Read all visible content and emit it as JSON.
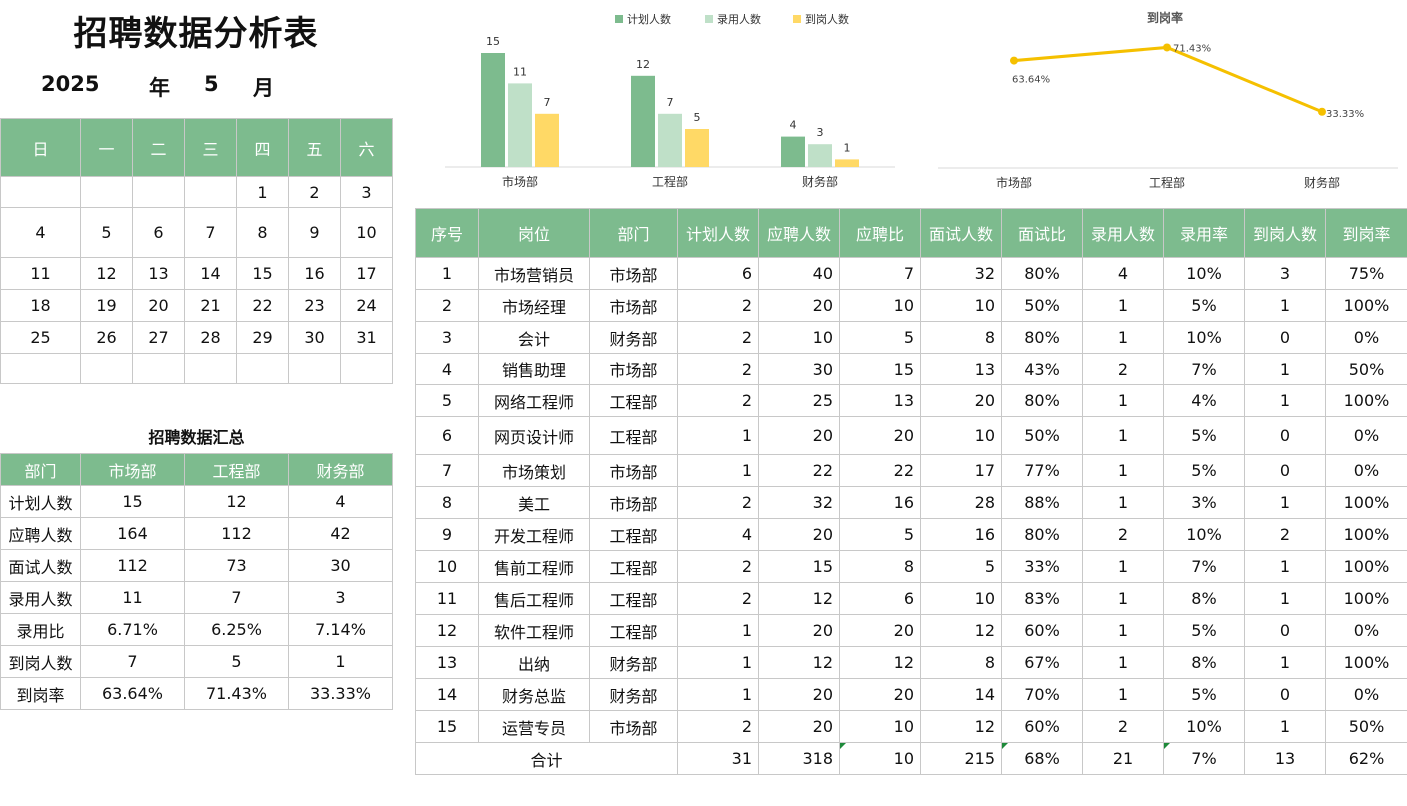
{
  "title": "招聘数据分析表",
  "calendar": {
    "year": "2025",
    "year_label": "年",
    "month": "5",
    "month_label": "月",
    "weekdays": [
      "日",
      "一",
      "二",
      "三",
      "四",
      "五",
      "六"
    ],
    "weeks": [
      [
        "",
        "",
        "",
        "",
        "1",
        "2",
        "3"
      ],
      [
        "4",
        "5",
        "6",
        "7",
        "8",
        "9",
        "10"
      ],
      [
        "11",
        "12",
        "13",
        "14",
        "15",
        "16",
        "17"
      ],
      [
        "18",
        "19",
        "20",
        "21",
        "22",
        "23",
        "24"
      ],
      [
        "25",
        "26",
        "27",
        "28",
        "29",
        "30",
        "31"
      ],
      [
        "",
        "",
        "",
        "",
        "",
        "",
        ""
      ]
    ]
  },
  "summary": {
    "title": "招聘数据汇总",
    "headers": [
      "部门",
      "市场部",
      "工程部",
      "财务部"
    ],
    "rows": [
      [
        "计划人数",
        "15",
        "12",
        "4"
      ],
      [
        "应聘人数",
        "164",
        "112",
        "42"
      ],
      [
        "面试人数",
        "112",
        "73",
        "30"
      ],
      [
        "录用人数",
        "11",
        "7",
        "3"
      ],
      [
        "录用比",
        "6.71%",
        "6.25%",
        "7.14%"
      ],
      [
        "到岗人数",
        "7",
        "5",
        "1"
      ],
      [
        "到岗率",
        "63.64%",
        "71.43%",
        "33.33%"
      ]
    ]
  },
  "table": {
    "headers": [
      "序号",
      "岗位",
      "部门",
      "计划人数",
      "应聘人数",
      "应聘比",
      "面试人数",
      "面试比",
      "录用人数",
      "录用率",
      "到岗人数",
      "到岗率"
    ],
    "rows": [
      [
        "1",
        "市场营销员",
        "市场部",
        "6",
        "40",
        "7",
        "32",
        "80%",
        "4",
        "10%",
        "3",
        "75%"
      ],
      [
        "2",
        "市场经理",
        "市场部",
        "2",
        "20",
        "10",
        "10",
        "50%",
        "1",
        "5%",
        "1",
        "100%"
      ],
      [
        "3",
        "会计",
        "财务部",
        "2",
        "10",
        "5",
        "8",
        "80%",
        "1",
        "10%",
        "0",
        "0%"
      ],
      [
        "4",
        "销售助理",
        "市场部",
        "2",
        "30",
        "15",
        "13",
        "43%",
        "2",
        "7%",
        "1",
        "50%"
      ],
      [
        "5",
        "网络工程师",
        "工程部",
        "2",
        "25",
        "13",
        "20",
        "80%",
        "1",
        "4%",
        "1",
        "100%"
      ],
      [
        "6",
        "网页设计师",
        "工程部",
        "1",
        "20",
        "20",
        "10",
        "50%",
        "1",
        "5%",
        "0",
        "0%"
      ],
      [
        "7",
        "市场策划",
        "市场部",
        "1",
        "22",
        "22",
        "17",
        "77%",
        "1",
        "5%",
        "0",
        "0%"
      ],
      [
        "8",
        "美工",
        "市场部",
        "2",
        "32",
        "16",
        "28",
        "88%",
        "1",
        "3%",
        "1",
        "100%"
      ],
      [
        "9",
        "开发工程师",
        "工程部",
        "4",
        "20",
        "5",
        "16",
        "80%",
        "2",
        "10%",
        "2",
        "100%"
      ],
      [
        "10",
        "售前工程师",
        "工程部",
        "2",
        "15",
        "8",
        "5",
        "33%",
        "1",
        "7%",
        "1",
        "100%"
      ],
      [
        "11",
        "售后工程师",
        "工程部",
        "2",
        "12",
        "6",
        "10",
        "83%",
        "1",
        "8%",
        "1",
        "100%"
      ],
      [
        "12",
        "软件工程师",
        "工程部",
        "1",
        "20",
        "20",
        "12",
        "60%",
        "1",
        "5%",
        "0",
        "0%"
      ],
      [
        "13",
        "出纳",
        "财务部",
        "1",
        "12",
        "12",
        "8",
        "67%",
        "1",
        "8%",
        "1",
        "100%"
      ],
      [
        "14",
        "财务总监",
        "财务部",
        "1",
        "20",
        "20",
        "14",
        "70%",
        "1",
        "5%",
        "0",
        "0%"
      ],
      [
        "15",
        "运营专员",
        "市场部",
        "2",
        "20",
        "10",
        "12",
        "60%",
        "2",
        "10%",
        "1",
        "50%"
      ]
    ],
    "total": [
      "合计",
      "31",
      "318",
      "10",
      "215",
      "68%",
      "21",
      "7%",
      "13",
      "62%"
    ]
  },
  "chart_data": [
    {
      "type": "bar",
      "title": "",
      "categories": [
        "市场部",
        "工程部",
        "财务部"
      ],
      "series": [
        {
          "name": "计划人数",
          "values": [
            15,
            12,
            4
          ],
          "color": "#7dbb8e"
        },
        {
          "name": "录用人数",
          "values": [
            11,
            7,
            3
          ],
          "color": "#bfe0c8"
        },
        {
          "name": "到岗人数",
          "values": [
            7,
            5,
            1
          ],
          "color": "#ffd966"
        }
      ],
      "ylim": [
        0,
        15
      ],
      "legend": "top",
      "grid": false
    },
    {
      "type": "line",
      "title": "到岗率",
      "categories": [
        "市场部",
        "工程部",
        "财务部"
      ],
      "series": [
        {
          "values": [
            63.64,
            71.43,
            33.33
          ],
          "labels": [
            "63.64%",
            "71.43%",
            "33.33%"
          ],
          "color": "#f5c000"
        }
      ],
      "ylim": [
        0,
        80
      ],
      "grid": false
    }
  ]
}
